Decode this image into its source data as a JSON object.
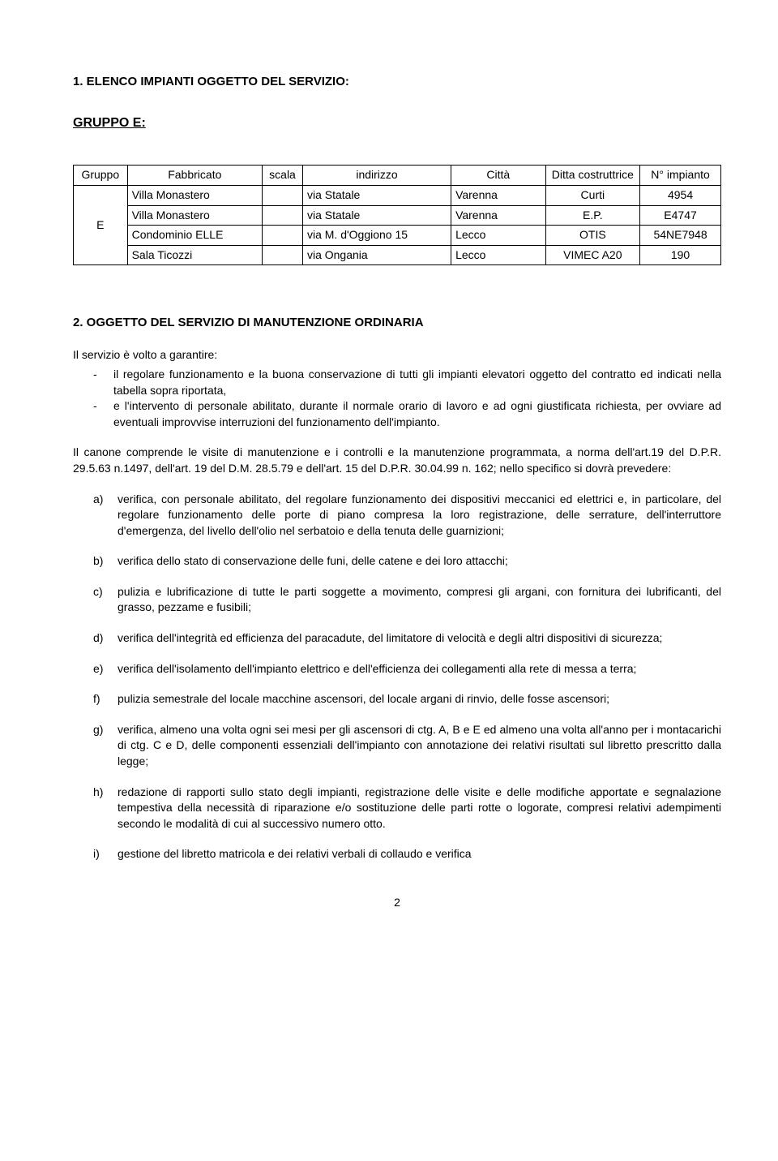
{
  "section1": {
    "title": "1.  ELENCO IMPIANTI OGGETTO DEL SERVIZIO:",
    "group_title": "GRUPPO E:"
  },
  "table": {
    "headers": {
      "gruppo": "Gruppo",
      "fabbricato": "Fabbricato",
      "scala": "scala",
      "indirizzo": "indirizzo",
      "citta": "Città",
      "ditta": "Ditta costruttrice",
      "impianto": "N° impianto"
    },
    "group_label": "E",
    "rows": [
      {
        "fabbricato": "Villa Monastero",
        "scala": "",
        "indirizzo": "via Statale",
        "citta": "Varenna",
        "ditta": "Curti",
        "impianto": "4954"
      },
      {
        "fabbricato": "Villa Monastero",
        "scala": "",
        "indirizzo": "via Statale",
        "citta": "Varenna",
        "ditta": "E.P.",
        "impianto": "E4747"
      },
      {
        "fabbricato": "Condominio ELLE",
        "scala": "",
        "indirizzo": "via M. d'Oggiono 15",
        "citta": "Lecco",
        "ditta": "OTIS",
        "impianto": "54NE7948"
      },
      {
        "fabbricato": "Sala Ticozzi",
        "scala": "",
        "indirizzo": "via Ongania",
        "citta": "Lecco",
        "ditta": "VIMEC A20",
        "impianto": "190"
      }
    ]
  },
  "section2": {
    "title": "2.  OGGETTO DEL SERVIZIO DI MANUTENZIONE ORDINARIA",
    "intro": "Il servizio è volto a garantire:",
    "dash_items": [
      "il regolare funzionamento e la buona conservazione di tutti gli impianti elevatori oggetto del contratto ed indicati nella tabella sopra riportata,",
      "e l'intervento di personale abilitato, durante il normale orario di lavoro e ad ogni giustificata richiesta, per ovviare ad eventuali improvvise interruzioni del funzionamento dell'impianto."
    ],
    "paragraph": "Il canone comprende le visite di manutenzione e i controlli e la manutenzione programmata, a norma dell'art.19 del D.P.R. 29.5.63 n.1497, dell'art. 19 del D.M. 28.5.79 e dell'art. 15 del D.P.R. 30.04.99 n. 162; nello specifico si dovrà prevedere:",
    "letter_items": [
      {
        "marker": "a)",
        "text": "verifica, con personale abilitato, del regolare funzionamento dei dispositivi meccanici ed elettrici e, in particolare, del regolare funzionamento delle porte di piano compresa la loro registrazione, delle serrature, dell'interruttore d'emergenza, del livello dell'olio nel serbatoio e della tenuta delle guarnizioni;"
      },
      {
        "marker": "b)",
        "text": "verifica dello stato di conservazione delle funi, delle catene e dei loro attacchi;"
      },
      {
        "marker": "c)",
        "text": "pulizia e lubrificazione di tutte le parti soggette a movimento, compresi gli argani,  con fornitura dei lubrificanti, del grasso,  pezzame e fusibili;"
      },
      {
        "marker": "d)",
        "text": "verifica dell'integrità ed efficienza del paracadute, del limitatore di velocità e degli altri dispositivi di sicurezza;"
      },
      {
        "marker": "e)",
        "text": "verifica dell'isolamento dell'impianto elettrico e dell'efficienza dei collegamenti alla rete di messa a terra;"
      },
      {
        "marker": "f)",
        "text": "pulizia semestrale del locale macchine ascensori, del locale argani di rinvio, delle fosse ascensori;"
      },
      {
        "marker": "g)",
        "text": "verifica, almeno una volta ogni sei mesi per gli ascensori di ctg. A, B e E ed almeno una volta all'anno per i montacarichi di ctg. C e D, delle componenti essenziali dell'impianto con annotazione dei relativi risultati sul libretto prescritto dalla legge;"
      },
      {
        "marker": "h)",
        "text": "redazione di rapporti sullo stato degli impianti, registrazione delle visite e delle modifiche apportate e segnalazione tempestiva della necessità di riparazione e/o sostituzione delle parti rotte o logorate, compresi relativi adempimenti secondo le modalità di cui al successivo numero otto."
      },
      {
        "marker": "i)",
        "text": "gestione del libretto matricola e dei relativi verbali di collaudo e verifica"
      }
    ]
  },
  "page_number": "2"
}
